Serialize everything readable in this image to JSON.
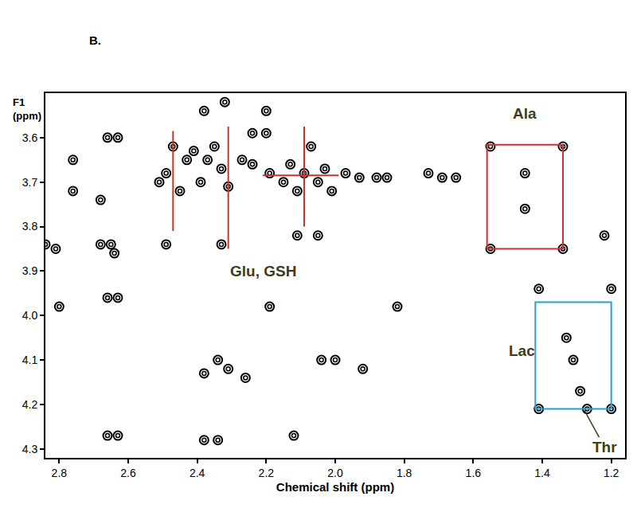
{
  "chart_data": {
    "type": "contour_peaks",
    "panel_label": "B.",
    "x_label": "Chemical shift (ppm)",
    "y_label": [
      "F1",
      "(ppm)"
    ],
    "xlim": [
      2.84,
      1.16
    ],
    "ylim": [
      3.5,
      4.32
    ],
    "xticks": [
      2.8,
      2.6,
      2.4,
      2.2,
      {
        "value": 2,
        "label": "2.0"
      },
      1.8,
      1.6,
      1.4,
      1.2
    ],
    "yticks": [
      3.6,
      3.7,
      3.8,
      3.9,
      {
        "value": 4,
        "label": "4.0"
      },
      4.1,
      4.2,
      4.3
    ],
    "grid": false,
    "color": "#000000",
    "marker": "circle-open",
    "peaks": {
      "x": [
        2.84,
        2.81,
        2.8,
        2.76,
        2.76,
        2.68,
        2.65,
        2.64,
        2.68,
        2.66,
        2.63,
        2.66,
        2.63,
        2.66,
        2.63,
        2.51,
        2.49,
        2.47,
        2.45,
        2.43,
        2.41,
        2.39,
        2.37,
        2.35,
        2.33,
        2.31,
        2.49,
        2.33,
        2.27,
        2.24,
        2.24,
        2.2,
        2.19,
        2.15,
        2.13,
        2.11,
        2.09,
        2.07,
        2.05,
        2.03,
        2.01,
        1.97,
        1.93,
        1.88,
        1.85,
        1.73,
        1.69,
        1.65,
        2.11,
        2.05,
        2.38,
        2.34,
        2.31,
        2.26,
        2.04,
        2.0,
        1.92,
        2.19,
        2.38,
        2.34,
        2.12,
        1.55,
        1.34,
        1.55,
        1.34,
        1.45,
        1.45,
        1.41,
        1.2,
        1.41,
        1.2,
        1.33,
        1.31,
        1.29,
        1.27,
        1.22,
        1.82,
        2.32,
        2.2,
        2.38
      ],
      "y": [
        3.84,
        3.85,
        3.98,
        3.72,
        3.65,
        3.84,
        3.84,
        3.86,
        3.74,
        3.6,
        3.6,
        3.96,
        3.96,
        4.27,
        4.27,
        3.7,
        3.68,
        3.62,
        3.72,
        3.65,
        3.63,
        3.7,
        3.65,
        3.62,
        3.67,
        3.71,
        3.84,
        3.84,
        3.65,
        3.59,
        3.66,
        3.59,
        3.68,
        3.7,
        3.66,
        3.72,
        3.68,
        3.62,
        3.7,
        3.67,
        3.72,
        3.68,
        3.69,
        3.69,
        3.69,
        3.68,
        3.69,
        3.69,
        3.82,
        3.82,
        4.13,
        4.1,
        4.12,
        4.14,
        4.1,
        4.1,
        4.12,
        3.98,
        4.28,
        4.28,
        4.27,
        3.62,
        3.62,
        3.85,
        3.85,
        3.68,
        3.76,
        3.94,
        3.94,
        4.21,
        4.21,
        4.05,
        4.1,
        4.17,
        4.21,
        3.82,
        3.98,
        3.52,
        3.54,
        3.54
      ]
    },
    "boxes": [
      {
        "x": [
          1.56,
          1.34
        ],
        "y": [
          3.616,
          3.85
        ],
        "color": "#d0312d"
      },
      {
        "x": [
          1.42,
          1.2
        ],
        "y": [
          3.97,
          4.21
        ],
        "color": "#2a9fd6"
      }
    ],
    "lines": [
      {
        "x": [
          2.47,
          2.47
        ],
        "y": [
          3.585,
          3.81
        ],
        "color": "#d0312d"
      },
      {
        "x": [
          2.31,
          2.31
        ],
        "y": [
          3.575,
          3.85
        ],
        "color": "#d0312d"
      },
      {
        "x": [
          2.09,
          2.09
        ],
        "y": [
          3.575,
          3.8
        ],
        "color": "#d0312d"
      },
      {
        "x": [
          2.21,
          1.99
        ],
        "y": [
          3.685,
          3.685
        ],
        "color": "#d0312d"
      }
    ],
    "annotations": [
      {
        "text": "Ala",
        "x": 1.45,
        "y": 3.545,
        "color": "#3d3d1c"
      },
      {
        "text": "Glu, GSH",
        "x": 2.21,
        "y": 3.9,
        "color": "#3d3d1c"
      },
      {
        "text": "Lac",
        "x": 1.46,
        "y": 4.08,
        "color": "#3d3d1c"
      },
      {
        "text": "Thr",
        "x": 1.22,
        "y": 4.295,
        "color": "#3d3d1c",
        "arrow_to": [
          1.28,
          4.21
        ]
      }
    ]
  }
}
